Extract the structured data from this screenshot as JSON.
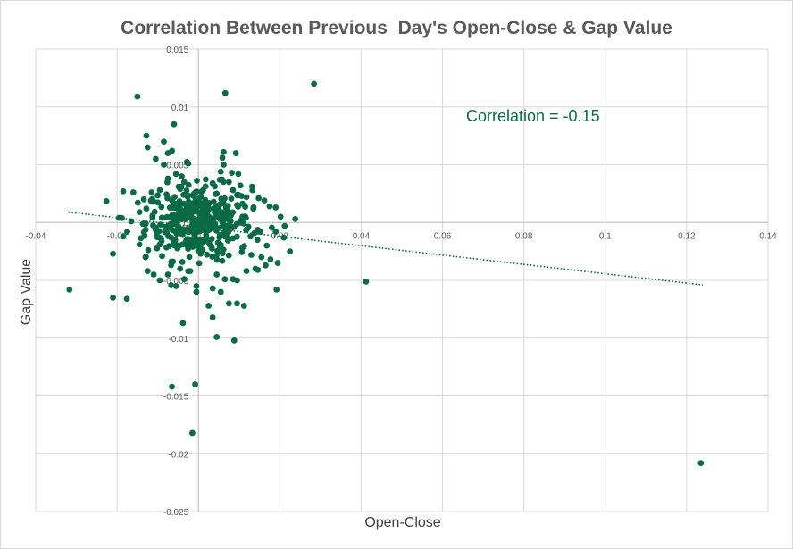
{
  "chart_data": {
    "type": "scatter",
    "title": "Correlation Between Previous  Day's Open-Close & Gap Value",
    "xlabel": "Open-Close",
    "ylabel": "Gap Value",
    "xlim": [
      -0.04,
      0.14
    ],
    "ylim": [
      -0.025,
      0.015
    ],
    "x_ticks": [
      -0.04,
      -0.02,
      0,
      0.02,
      0.04,
      0.06,
      0.08,
      0.1,
      0.12,
      0.14
    ],
    "x_tick_labels": [
      "-0.04",
      "-0.02",
      "0",
      "0.02",
      "0.04",
      "0.06",
      "0.08",
      "0.1",
      "0.12",
      "0.14"
    ],
    "y_ticks": [
      0.015,
      0.01,
      0.005,
      0,
      -0.005,
      -0.01,
      -0.015,
      -0.02,
      -0.025
    ],
    "y_tick_labels": [
      "0.015",
      "0.01",
      "0.005",
      "0",
      "-0.005",
      "-0.01",
      "-0.015",
      "-0.02",
      "-0.025"
    ],
    "grid": true,
    "annotation": "Correlation = -0.15",
    "trendline": {
      "style": "dotted",
      "x": [
        -0.032,
        0.124
      ],
      "y": [
        0.0009,
        -0.0054
      ]
    },
    "marker_color": "#0b6a46",
    "cluster": {
      "cx": 0.0,
      "cy": 0.0,
      "sx": 0.0065,
      "sy": 0.0016,
      "count": 380
    },
    "points": [
      [
        -0.015,
        0.0109
      ],
      [
        0.0066,
        0.0112
      ],
      [
        0.0284,
        0.012
      ],
      [
        -0.006,
        0.0085
      ],
      [
        -0.0128,
        0.0075
      ],
      [
        -0.0125,
        0.0065
      ],
      [
        -0.0085,
        0.007
      ],
      [
        -0.0075,
        0.006
      ],
      [
        -0.0065,
        0.0062
      ],
      [
        -0.0105,
        0.0055
      ],
      [
        -0.0085,
        0.005
      ],
      [
        -0.0025,
        0.0051
      ],
      [
        0.0062,
        0.0061
      ],
      [
        0.0059,
        0.0056
      ],
      [
        0.0092,
        0.006
      ],
      [
        0.0082,
        0.0043
      ],
      [
        0.0062,
        0.005
      ],
      [
        0.0098,
        0.0042
      ],
      [
        0.0103,
        0.0032
      ],
      [
        0.0132,
        0.0031
      ],
      [
        0.0148,
        0.0021
      ],
      [
        0.0162,
        0.0019
      ],
      [
        0.0175,
        0.0014
      ],
      [
        0.019,
        0.0013
      ],
      [
        0.0202,
        0.0005
      ],
      [
        0.0238,
        0.0003
      ],
      [
        0.0212,
        -0.0003
      ],
      [
        0.019,
        -0.0008
      ],
      [
        0.021,
        -0.0013
      ],
      [
        0.0225,
        -0.0025
      ],
      [
        0.0168,
        -0.002
      ],
      [
        0.0195,
        -0.0035
      ],
      [
        0.0155,
        -0.003
      ],
      [
        0.0165,
        -0.0037
      ],
      [
        0.014,
        -0.004
      ],
      [
        0.0118,
        -0.0042
      ],
      [
        0.013,
        -0.0028
      ],
      [
        0.0095,
        -0.005
      ],
      [
        0.0192,
        -0.0058
      ],
      [
        0.0095,
        -0.007
      ],
      [
        0.0112,
        -0.0072
      ],
      [
        0.0075,
        -0.007
      ],
      [
        0.0088,
        -0.0102
      ],
      [
        -0.0038,
        -0.0087
      ],
      [
        0.0025,
        -0.0072
      ],
      [
        0.0035,
        -0.0082
      ],
      [
        0.0045,
        -0.0099
      ],
      [
        -0.0065,
        -0.0142
      ],
      [
        -0.0008,
        -0.014
      ],
      [
        -0.0015,
        -0.0182
      ],
      [
        0.1235,
        -0.0208
      ],
      [
        0.0412,
        -0.0051
      ],
      [
        -0.0317,
        -0.0058
      ],
      [
        -0.021,
        -0.0065
      ],
      [
        -0.0176,
        -0.0066
      ],
      [
        -0.021,
        -0.0027
      ],
      [
        -0.0185,
        -0.0012
      ],
      [
        -0.0195,
        0.0004
      ],
      [
        -0.0185,
        0.0027
      ],
      [
        -0.016,
        0.0026
      ],
      [
        -0.0175,
        -0.0008
      ],
      [
        -0.0165,
        0.0001
      ],
      [
        -0.0145,
        -0.0019
      ],
      [
        -0.013,
        -0.003
      ],
      [
        -0.0125,
        -0.0042
      ],
      [
        -0.011,
        -0.0045
      ],
      [
        -0.0095,
        -0.005
      ],
      [
        -0.0075,
        -0.0045
      ],
      [
        -0.0055,
        -0.0055
      ],
      [
        -0.0045,
        -0.004
      ],
      [
        -0.0035,
        -0.0049
      ],
      [
        -0.0005,
        -0.0055
      ],
      [
        -0.0005,
        -0.006
      ],
      [
        0.0035,
        -0.0057
      ],
      [
        0.0055,
        -0.006
      ],
      [
        0.0065,
        -0.0049
      ],
      [
        0.0045,
        -0.0045
      ],
      [
        0.0085,
        -0.0049
      ],
      [
        -0.0095,
        0.0028
      ],
      [
        -0.0115,
        0.0026
      ],
      [
        -0.0075,
        0.0038
      ],
      [
        -0.0055,
        0.0042
      ],
      [
        -0.0035,
        0.0035
      ],
      [
        -0.0045,
        0.0029
      ],
      [
        0.0035,
        0.0034
      ],
      [
        0.0055,
        0.0044
      ],
      [
        0.0075,
        0.0035
      ],
      [
        0.0085,
        0.0028
      ],
      [
        0.0045,
        0.0025
      ],
      [
        -0.0128,
        0.0012
      ],
      [
        -0.011,
        0.0018
      ],
      [
        -0.0145,
        0.0009
      ],
      [
        0.0118,
        0.0022
      ],
      [
        0.0135,
        0.0012
      ],
      [
        0.0128,
        -0.0012
      ],
      [
        0.0145,
        -0.0015
      ],
      [
        0.0152,
        -0.0008
      ],
      [
        0.0108,
        -0.0022
      ],
      [
        0.0055,
        0.0016
      ],
      [
        -0.0065,
        0.0019
      ]
    ]
  }
}
